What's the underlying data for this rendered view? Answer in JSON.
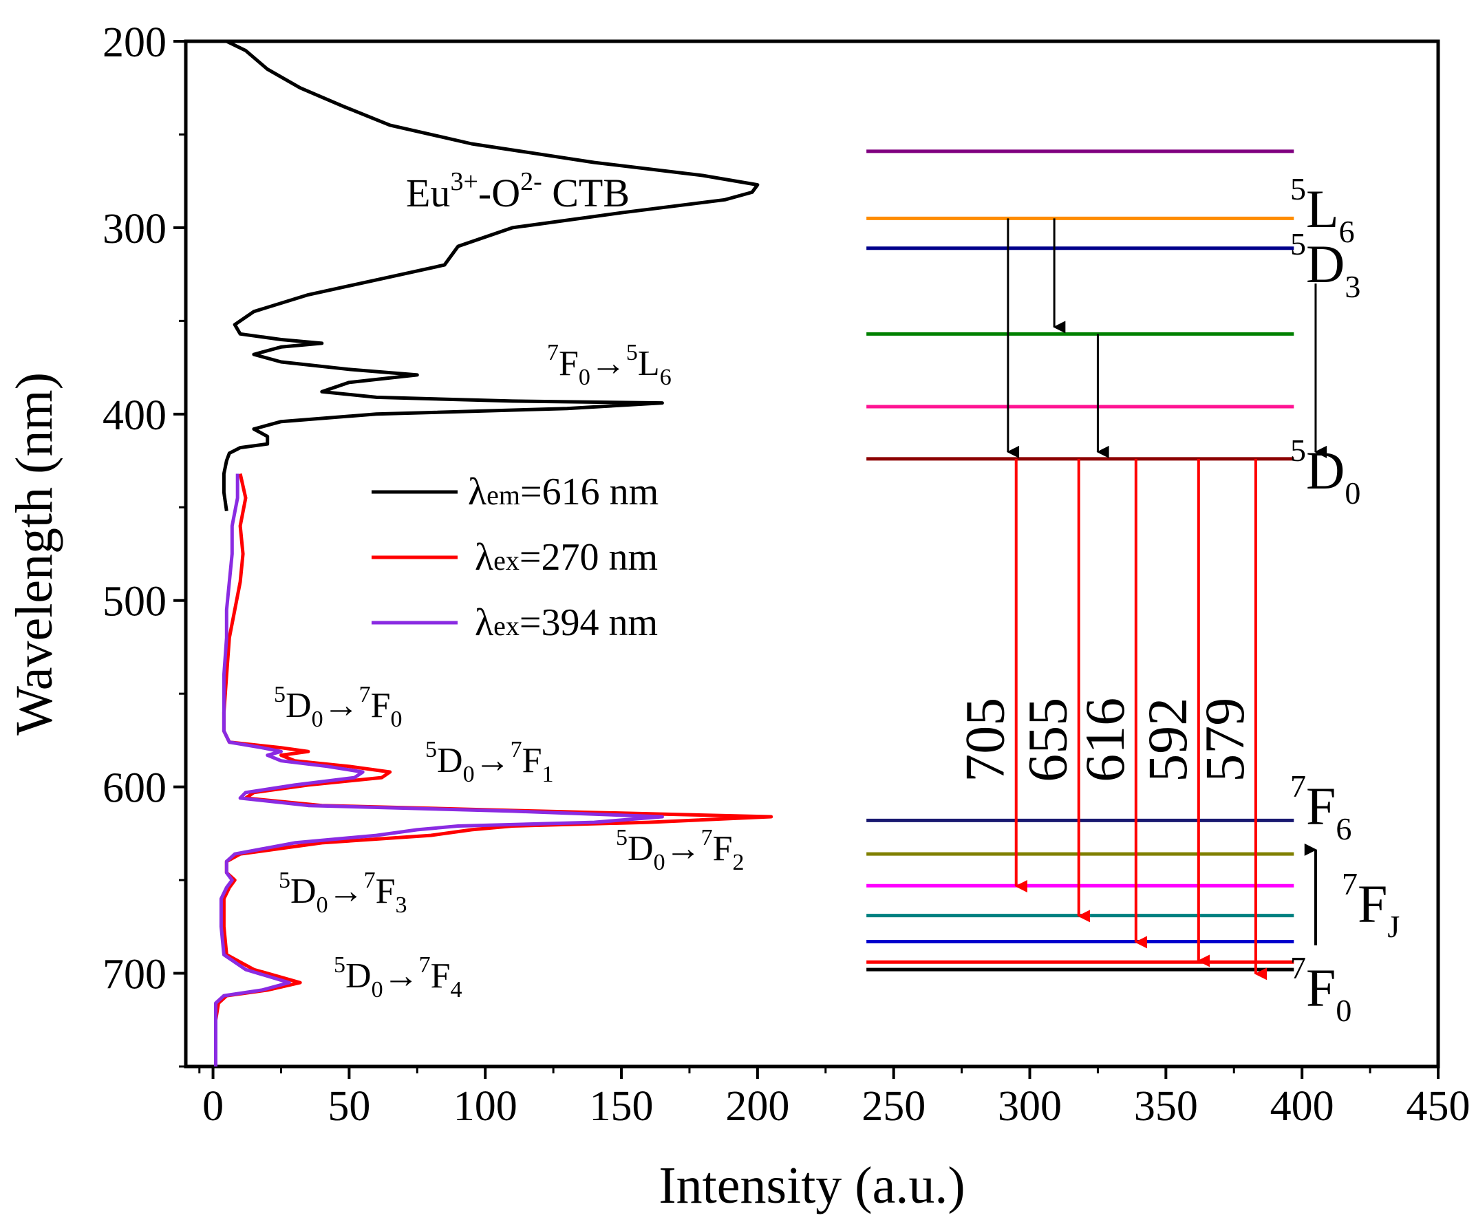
{
  "chart_data": {
    "type": "line",
    "orientation": "x=intensity, y=wavelength (inverted, increasing downward)",
    "xlabel": "Intensity (a.u.)",
    "ylabel": "Wavelength (nm)",
    "xlim": [
      -10,
      450
    ],
    "ylim": [
      200,
      750
    ],
    "xticks": [
      0,
      50,
      100,
      150,
      200,
      250,
      300,
      350,
      400,
      450
    ],
    "yticks": [
      200,
      300,
      400,
      500,
      600,
      700
    ],
    "legend_position": "middle-left",
    "series": [
      {
        "name": "λem=616 nm",
        "legend_symbol": "λ",
        "legend_sub": "em",
        "legend_value": "=616 nm",
        "color": "#000000",
        "points": [
          [
            5,
            200
          ],
          [
            12,
            205
          ],
          [
            20,
            215
          ],
          [
            32,
            225
          ],
          [
            48,
            235
          ],
          [
            65,
            245
          ],
          [
            95,
            255
          ],
          [
            140,
            265
          ],
          [
            180,
            272
          ],
          [
            200,
            277
          ],
          [
            198,
            281
          ],
          [
            188,
            285
          ],
          [
            150,
            292
          ],
          [
            110,
            300
          ],
          [
            90,
            310
          ],
          [
            85,
            320
          ],
          [
            60,
            328
          ],
          [
            35,
            336
          ],
          [
            15,
            345
          ],
          [
            8,
            352
          ],
          [
            10,
            357
          ],
          [
            25,
            360
          ],
          [
            40,
            362
          ],
          [
            25,
            364
          ],
          [
            15,
            368
          ],
          [
            25,
            372
          ],
          [
            50,
            376
          ],
          [
            75,
            379
          ],
          [
            50,
            383
          ],
          [
            40,
            388
          ],
          [
            60,
            391
          ],
          [
            110,
            393
          ],
          [
            165,
            394
          ],
          [
            130,
            397
          ],
          [
            60,
            400
          ],
          [
            25,
            404
          ],
          [
            15,
            408
          ],
          [
            20,
            412
          ],
          [
            20,
            416
          ],
          [
            10,
            418
          ],
          [
            6,
            421
          ],
          [
            5,
            425
          ],
          [
            4,
            432
          ],
          [
            4,
            442
          ],
          [
            5,
            452
          ]
        ]
      },
      {
        "name": "λex=270 nm",
        "legend_symbol": "λ",
        "legend_sub": "ex",
        "legend_value": "=270 nm",
        "color": "#ff0000",
        "points": [
          [
            10,
            432
          ],
          [
            12,
            445
          ],
          [
            10,
            460
          ],
          [
            11,
            475
          ],
          [
            10,
            490
          ],
          [
            8,
            505
          ],
          [
            6,
            520
          ],
          [
            5,
            540
          ],
          [
            4,
            560
          ],
          [
            4,
            570
          ],
          [
            6,
            576
          ],
          [
            25,
            579
          ],
          [
            35,
            581
          ],
          [
            25,
            583
          ],
          [
            30,
            586
          ],
          [
            50,
            589
          ],
          [
            65,
            592
          ],
          [
            62,
            595
          ],
          [
            35,
            599
          ],
          [
            15,
            603
          ],
          [
            12,
            606
          ],
          [
            40,
            610
          ],
          [
            120,
            613
          ],
          [
            205,
            616
          ],
          [
            160,
            619
          ],
          [
            110,
            621
          ],
          [
            95,
            623
          ],
          [
            80,
            626
          ],
          [
            40,
            630
          ],
          [
            10,
            636
          ],
          [
            5,
            640
          ],
          [
            5,
            646
          ],
          [
            8,
            650
          ],
          [
            6,
            654
          ],
          [
            4,
            660
          ],
          [
            4,
            675
          ],
          [
            5,
            690
          ],
          [
            15,
            698
          ],
          [
            32,
            705
          ],
          [
            20,
            709
          ],
          [
            5,
            712
          ],
          [
            2,
            716
          ],
          [
            1,
            725
          ],
          [
            1,
            740
          ],
          [
            1,
            750
          ]
        ]
      },
      {
        "name": "λex=394 nm",
        "legend_symbol": "λ",
        "legend_sub": "ex",
        "legend_value": "=394 nm",
        "color": "#8a2be2",
        "points": [
          [
            9,
            432
          ],
          [
            9,
            445
          ],
          [
            7,
            460
          ],
          [
            7,
            475
          ],
          [
            6,
            490
          ],
          [
            5,
            505
          ],
          [
            5,
            520
          ],
          [
            4,
            540
          ],
          [
            4,
            560
          ],
          [
            4,
            570
          ],
          [
            6,
            576
          ],
          [
            18,
            579
          ],
          [
            25,
            581
          ],
          [
            20,
            583
          ],
          [
            25,
            586
          ],
          [
            42,
            589
          ],
          [
            55,
            592
          ],
          [
            52,
            595
          ],
          [
            30,
            599
          ],
          [
            12,
            603
          ],
          [
            10,
            606
          ],
          [
            35,
            610
          ],
          [
            110,
            613
          ],
          [
            165,
            616
          ],
          [
            140,
            619
          ],
          [
            90,
            621
          ],
          [
            75,
            623
          ],
          [
            60,
            626
          ],
          [
            30,
            630
          ],
          [
            8,
            636
          ],
          [
            5,
            640
          ],
          [
            5,
            646
          ],
          [
            7,
            650
          ],
          [
            5,
            654
          ],
          [
            3,
            660
          ],
          [
            3,
            675
          ],
          [
            4,
            690
          ],
          [
            12,
            698
          ],
          [
            28,
            705
          ],
          [
            18,
            709
          ],
          [
            4,
            712
          ],
          [
            1,
            716
          ],
          [
            1,
            725
          ],
          [
            1,
            740
          ],
          [
            1,
            750
          ]
        ]
      }
    ],
    "annotations": [
      {
        "main": "Eu",
        "sup1": "3+",
        "mid": "-O",
        "sup2": "2-",
        "tail": " CTB"
      },
      {
        "pre": "7",
        "a": "F",
        "asub": "0",
        "arrow": "→",
        "post": "5",
        "b": "L",
        "bsub": "6"
      },
      {
        "pre": "5",
        "a": "D",
        "asub": "0",
        "arrow": "→",
        "post": "7",
        "b": "F",
        "bsub": "0"
      },
      {
        "pre": "5",
        "a": "D",
        "asub": "0",
        "arrow": "→",
        "post": "7",
        "b": "F",
        "bsub": "1"
      },
      {
        "pre": "5",
        "a": "D",
        "asub": "0",
        "arrow": "→",
        "post": "7",
        "b": "F",
        "bsub": "2"
      },
      {
        "pre": "5",
        "a": "D",
        "asub": "0",
        "arrow": "→",
        "post": "7",
        "b": "F",
        "bsub": "3"
      },
      {
        "pre": "5",
        "a": "D",
        "asub": "0",
        "arrow": "→",
        "post": "7",
        "b": "F",
        "bsub": "4"
      }
    ],
    "energy_diagram": {
      "levels": [
        {
          "wavelength": 259,
          "color": "#800080"
        },
        {
          "wavelength": 295,
          "color": "#ff8c00"
        },
        {
          "wavelength": 311,
          "color": "#00008b"
        },
        {
          "wavelength": 357,
          "color": "#008000"
        },
        {
          "wavelength": 396,
          "color": "#ff1493"
        },
        {
          "wavelength": 424,
          "color": "#8b0000"
        },
        {
          "wavelength": 618,
          "color": "#191970"
        },
        {
          "wavelength": 636,
          "color": "#808000"
        },
        {
          "wavelength": 653,
          "color": "#ff00ff"
        },
        {
          "wavelength": 669,
          "color": "#008080"
        },
        {
          "wavelength": 683,
          "color": "#0000cd"
        },
        {
          "wavelength": 694,
          "color": "#ff0000"
        },
        {
          "wavelength": 698,
          "color": "#000000"
        }
      ],
      "level_x_range": [
        240,
        397
      ],
      "level_labels": [
        {
          "sup": "5",
          "base": "L",
          "sub": "6"
        },
        {
          "sup": "5",
          "base": "D",
          "sub": "3"
        },
        {
          "sup": "5",
          "base": "D",
          "sub": "0"
        },
        {
          "sup": "7",
          "base": "F",
          "sub": "6"
        },
        {
          "sup": "7",
          "base": "F",
          "sub": "J"
        },
        {
          "sup": "7",
          "base": "F",
          "sub": "0"
        }
      ],
      "relaxation_arrows": [
        {
          "x": 292,
          "from": 295,
          "to": 424
        },
        {
          "x": 309,
          "from": 295,
          "to": 357
        },
        {
          "x": 325,
          "from": 357,
          "to": 424
        },
        {
          "x": 405,
          "from": 330,
          "to": 424
        }
      ],
      "fj_arrow": {
        "x": 405,
        "from": 685,
        "to": 630
      },
      "emissions": [
        {
          "label": "705",
          "x": 295,
          "from": 424,
          "to": 657
        },
        {
          "label": "655",
          "x": 318,
          "from": 424,
          "to": 673
        },
        {
          "label": "616",
          "x": 339,
          "from": 424,
          "to": 687
        },
        {
          "label": "592",
          "x": 362,
          "from": 424,
          "to": 697
        },
        {
          "label": "579",
          "x": 383,
          "from": 424,
          "to": 704
        }
      ]
    }
  }
}
